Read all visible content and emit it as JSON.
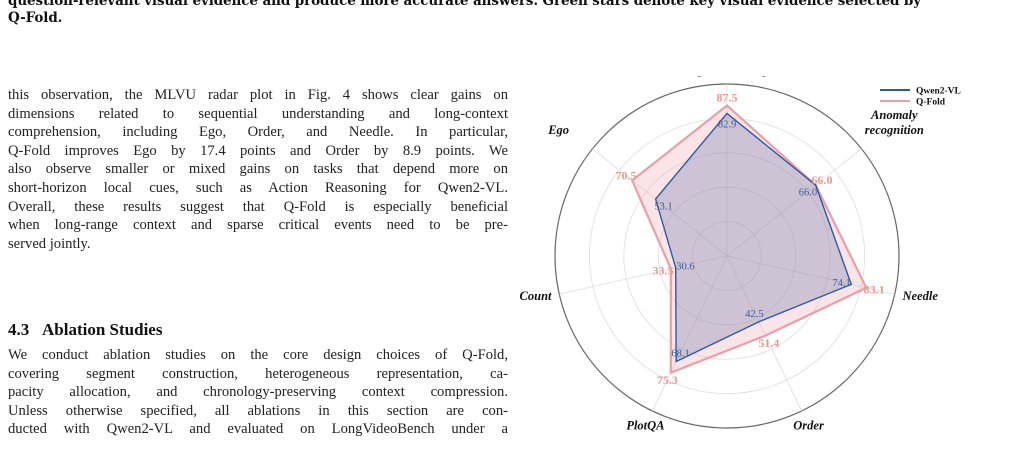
{
  "caption": {
    "line1": "question-relevant visual evidence and produce more accurate answers. Green stars denote key visual evidence selected by",
    "line2": "Q-Fold."
  },
  "paragraph": {
    "lines": [
      "this observation, the MLVU radar plot in Fig. 4 shows clear gains on",
      "dimensions related to sequential understanding and long-context",
      "comprehension, including Ego, Order, and Needle. In particular,",
      "Q-Fold improves Ego by 17.4 points and Order by 8.9 points. We",
      "also observe smaller or mixed gains on tasks that depend more on",
      "short-horizon local cues, such as Action Reasoning for Qwen2-VL.",
      "Overall, these results suggest that Q-Fold is especially beneficial",
      "when long-range context and sparse critical events need to be pre-",
      "served jointly."
    ]
  },
  "section": {
    "number": "4.3",
    "title": "Ablation Studies",
    "lines": [
      "We conduct ablation studies on the core design choices of Q-Fold,",
      "covering segment construction, heterogeneous representation, ca-",
      "pacity allocation, and chronology-preserving context compression.",
      "Unless otherwise specified, all ablations in this section are con-",
      "ducted with Qwen2-VL and evaluated on LongVideoBench under a"
    ]
  },
  "chart_data": {
    "type": "radar",
    "axes": [
      "Topic reasoning",
      "Anomaly recognition",
      "Needle",
      "Order",
      "PlotQA",
      "Count",
      "Ego"
    ],
    "axis_labels": {
      "Topic reasoning": [
        "Topic reasoning"
      ],
      "Anomaly recognition": [
        "Anomaly",
        "recognition"
      ],
      "Needle": [
        "Needle"
      ],
      "Order": [
        "Order"
      ],
      "PlotQA": [
        "PlotQA"
      ],
      "Count": [
        "Count"
      ],
      "Ego": [
        "Ego"
      ]
    },
    "rlim": [
      0,
      100
    ],
    "grid": true,
    "legend_position": "top-right",
    "series": [
      {
        "name": "Qwen2-VL",
        "values": [
          82.9,
          66.0,
          74.1,
          42.5,
          68.1,
          30.6,
          53.1
        ],
        "labels": [
          "82.9",
          "66.0",
          "74.1",
          "42.5",
          "68.1",
          "30.6",
          "53.1"
        ],
        "color": "#2b5aa8",
        "fill": "rgba(90,110,170,0.28)"
      },
      {
        "name": "Q-Fold",
        "values": [
          87.5,
          66.0,
          83.1,
          51.4,
          75.3,
          33.5,
          70.5
        ],
        "labels": [
          "87.5",
          "66.0",
          "83.1",
          "51.4",
          "75.3",
          "33.5",
          "70.5"
        ],
        "color": "#e8a0a8",
        "fill": "rgba(240,170,180,0.32)"
      }
    ]
  }
}
